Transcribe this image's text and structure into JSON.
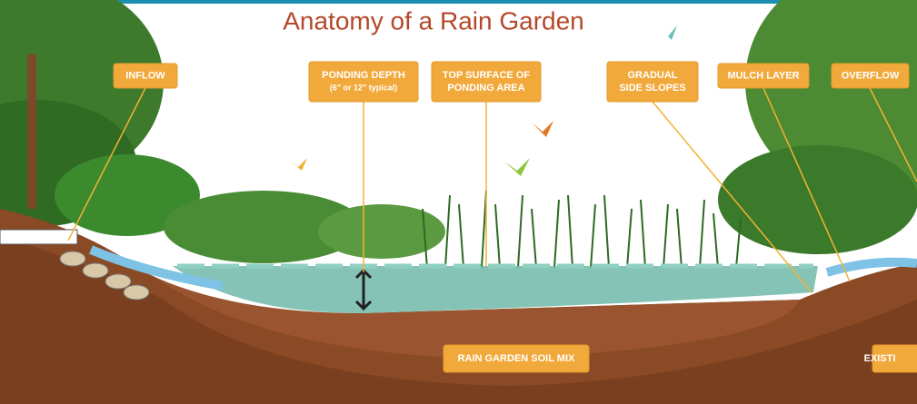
{
  "title": "Anatomy of a Rain Garden",
  "labels": [
    {
      "lines": [
        "INFLOW"
      ]
    },
    {
      "lines": [
        "PONDING DEPTH",
        "(6\" or 12\" typical)"
      ]
    },
    {
      "lines": [
        "TOP SURFACE OF",
        "PONDING AREA"
      ]
    },
    {
      "lines": [
        "GRADUAL",
        "SIDE SLOPES"
      ]
    },
    {
      "lines": [
        "MULCH LAYER"
      ]
    },
    {
      "lines": [
        "OVERFLOW"
      ]
    },
    {
      "lines": [
        "RAIN GARDEN SOIL MIX"
      ]
    },
    {
      "lines": [
        "EXISTI"
      ]
    }
  ]
}
